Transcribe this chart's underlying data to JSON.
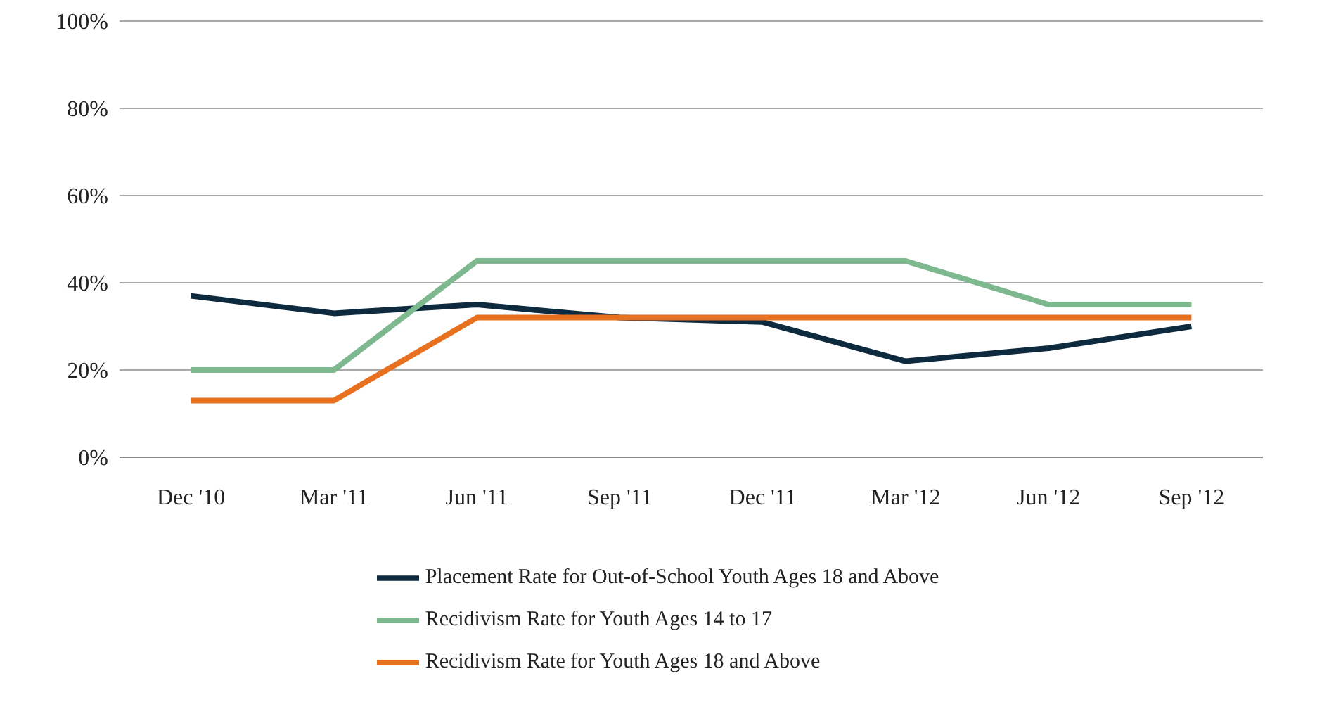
{
  "chart_data": {
    "type": "line",
    "categories": [
      "Dec '10",
      "Mar '11",
      "Jun '11",
      "Sep '11",
      "Dec '11",
      "Mar '12",
      "Jun '12",
      "Sep '12"
    ],
    "series": [
      {
        "name": "Placement Rate for Out-of-School Youth Ages 18 and Above",
        "color": "#0d2a3e",
        "values": [
          37,
          33,
          35,
          32,
          31,
          22,
          25,
          30
        ]
      },
      {
        "name": "Recidivism Rate for Youth Ages 14 to 17",
        "color": "#7db88f",
        "values": [
          20,
          20,
          45,
          45,
          45,
          45,
          35,
          35
        ]
      },
      {
        "name": "Recidivism Rate for Youth Ages 18 and Above",
        "color": "#e8711f",
        "values": [
          13,
          13,
          32,
          32,
          32,
          32,
          32,
          32
        ]
      }
    ],
    "ylim": [
      0,
      100
    ],
    "yticks": [
      {
        "value": 0,
        "label": "0%"
      },
      {
        "value": 20,
        "label": "20%"
      },
      {
        "value": 40,
        "label": "40%"
      },
      {
        "value": 60,
        "label": "60%"
      },
      {
        "value": 80,
        "label": "80%"
      },
      {
        "value": 100,
        "label": "100%"
      }
    ],
    "grid": "y",
    "legend": "bottom",
    "marker": "none",
    "line_style": "solid"
  }
}
